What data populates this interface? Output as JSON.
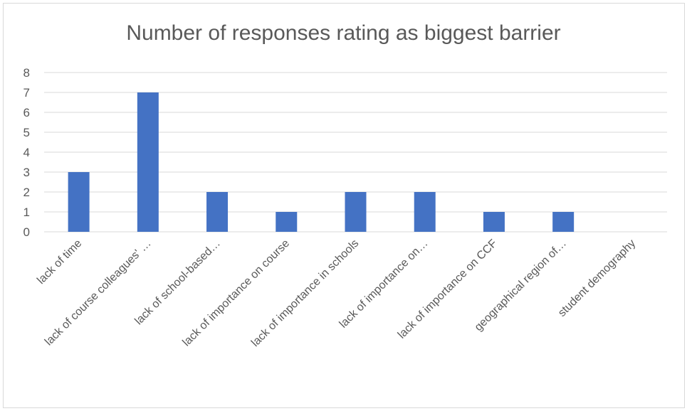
{
  "chart_data": {
    "type": "bar",
    "title": "Number of responses rating as biggest barrier",
    "categories": [
      "lack of time",
      "lack of course colleagues' …",
      "lack of school-based…",
      "lack of importance on course",
      "lack of importance in schools",
      "lack of importance on…",
      "lack of importance on CCF",
      "geographical region of…",
      "student demography"
    ],
    "values": [
      3,
      7,
      2,
      1,
      2,
      2,
      1,
      1,
      0
    ],
    "ylim": [
      0,
      8
    ],
    "yticks": [
      "0",
      "1",
      "2",
      "3",
      "4",
      "5",
      "6",
      "7",
      "8"
    ],
    "xlabel": "",
    "ylabel": "",
    "grid": true,
    "legend": "none",
    "bar_color": "#4472c4",
    "grid_color": "#d9d9d9"
  }
}
